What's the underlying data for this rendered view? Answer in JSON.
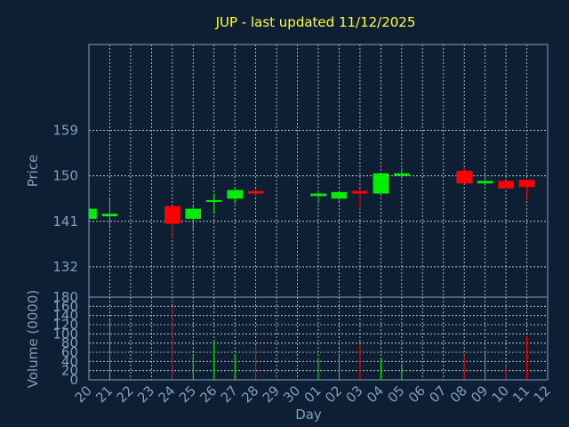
{
  "chart_data": {
    "type": "candlestick",
    "title": "JUP - last updated 11/12/2025",
    "xlabel": "Day",
    "price_ylabel": "Price",
    "volume_ylabel": "Volume (0000)",
    "grid": true,
    "up_color": "#00ee00",
    "down_color": "#ff0000",
    "background": "#0f1f33",
    "price_ylim": [
      126,
      176
    ],
    "price_ticks": [
      132,
      141,
      150,
      159
    ],
    "volume_ylim": [
      0,
      180
    ],
    "volume_ticks": [
      0,
      20,
      40,
      60,
      80,
      100,
      120,
      140,
      160,
      180
    ],
    "x_labels": [
      "20",
      "21",
      "22",
      "23",
      "24",
      "25",
      "26",
      "27",
      "28",
      "29",
      "30",
      "01",
      "02",
      "03",
      "04",
      "05",
      "06",
      "07",
      "08",
      "09",
      "10",
      "11",
      "12"
    ],
    "candles": [
      {
        "day": "20",
        "open": 141.5,
        "high": 143.5,
        "low": 141.5,
        "close": 143.5,
        "volume": 0
      },
      {
        "day": "21",
        "open": 142.0,
        "high": 145.5,
        "low": 140.0,
        "close": 142.5,
        "volume": 130
      },
      {
        "day": "24",
        "open": 144.0,
        "high": 144.0,
        "low": 137.5,
        "close": 140.5,
        "volume": 160
      },
      {
        "day": "25",
        "open": 141.5,
        "high": 144.0,
        "low": 139.0,
        "close": 143.5,
        "volume": 55
      },
      {
        "day": "26",
        "open": 145.0,
        "high": 146.5,
        "low": 142.5,
        "close": 145.2,
        "volume": 85
      },
      {
        "day": "27",
        "open": 145.5,
        "high": 147.5,
        "low": 144.5,
        "close": 147.2,
        "volume": 55
      },
      {
        "day": "28",
        "open": 147.0,
        "high": 147.5,
        "low": 146.0,
        "close": 146.5,
        "volume": 75
      },
      {
        "day": "01",
        "open": 146.0,
        "high": 147.0,
        "low": 144.5,
        "close": 146.5,
        "volume": 48
      },
      {
        "day": "02",
        "open": 145.5,
        "high": 147.0,
        "low": 145.0,
        "close": 146.8,
        "volume": 55
      },
      {
        "day": "03",
        "open": 147.0,
        "high": 147.5,
        "low": 143.5,
        "close": 146.5,
        "volume": 78
      },
      {
        "day": "04",
        "open": 146.5,
        "high": 150.5,
        "low": 146.5,
        "close": 150.5,
        "volume": 48
      },
      {
        "day": "05",
        "open": 150.0,
        "high": 151.5,
        "low": 149.5,
        "close": 150.5,
        "volume": 35
      },
      {
        "day": "08",
        "open": 151.0,
        "high": 151.5,
        "low": 148.5,
        "close": 148.5,
        "volume": 55
      },
      {
        "day": "09",
        "open": 148.5,
        "high": 150.5,
        "low": 148.0,
        "close": 149.0,
        "volume": 65
      },
      {
        "day": "10",
        "open": 149.0,
        "high": 149.0,
        "low": 147.5,
        "close": 147.5,
        "volume": 30
      },
      {
        "day": "11",
        "open": 149.2,
        "high": 149.2,
        "low": 145.5,
        "close": 147.8,
        "volume": 95
      }
    ]
  }
}
